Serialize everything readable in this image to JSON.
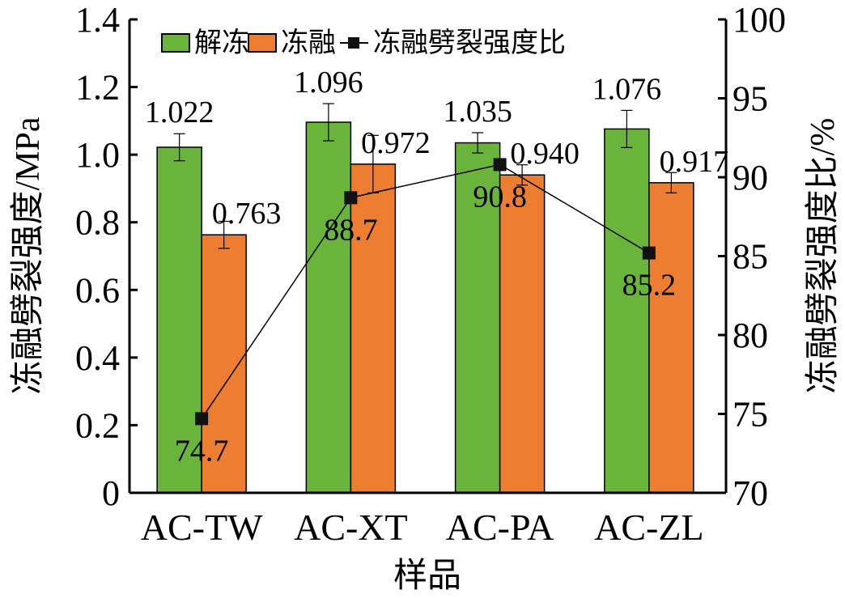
{
  "chart_data": {
    "type": "bar",
    "categories": [
      "AC-TW",
      "AC-XT",
      "AC-PA",
      "AC-ZL"
    ],
    "xlabel": "样品",
    "ylabel": "冻融劈裂强度/MPa",
    "y2label": "冻融劈裂强度比/%",
    "ylim": [
      0,
      1.4
    ],
    "yticks": [
      "0",
      "0.2",
      "0.4",
      "0.6",
      "0.8",
      "1.0",
      "1.2",
      "1.4"
    ],
    "y2lim": [
      70,
      100
    ],
    "y2ticks": [
      "70",
      "75",
      "80",
      "85",
      "90",
      "95",
      "100"
    ],
    "legend_position": "top",
    "series": [
      {
        "name": "解冻",
        "kind": "bar",
        "color": "#6ab43c",
        "values": [
          1.022,
          1.096,
          1.035,
          1.076
        ],
        "labels": [
          "1.022",
          "1.096",
          "1.035",
          "1.076"
        ],
        "errors": [
          0.04,
          0.055,
          0.03,
          0.055
        ]
      },
      {
        "name": "冻融",
        "kind": "bar",
        "color": "#ed7d31",
        "values": [
          0.763,
          0.972,
          0.94,
          0.917
        ],
        "labels": [
          "0.763",
          "0.972",
          "0.940",
          "0.917"
        ],
        "errors": [
          0.04,
          0.085,
          0.03,
          0.03
        ]
      },
      {
        "name": "冻融劈裂强度比",
        "kind": "line",
        "axis": "right",
        "color": "#000000",
        "values": [
          74.7,
          88.7,
          90.8,
          85.2
        ],
        "labels": [
          "74.7",
          "88.7",
          "90.8",
          "85.2"
        ]
      }
    ]
  }
}
